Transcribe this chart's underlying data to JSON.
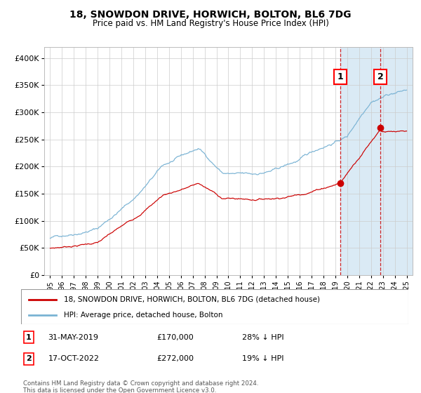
{
  "title": "18, SNOWDON DRIVE, HORWICH, BOLTON, BL6 7DG",
  "subtitle": "Price paid vs. HM Land Registry's House Price Index (HPI)",
  "legend_line1": "18, SNOWDON DRIVE, HORWICH, BOLTON, BL6 7DG (detached house)",
  "legend_line2": "HPI: Average price, detached house, Bolton",
  "annotation_note": "Contains HM Land Registry data © Crown copyright and database right 2024.\nThis data is licensed under the Open Government Licence v3.0.",
  "sale1_date": "31-MAY-2019",
  "sale1_price": "£170,000",
  "sale1_hpi": "28% ↓ HPI",
  "sale2_date": "17-OCT-2022",
  "sale2_price": "£272,000",
  "sale2_hpi": "19% ↓ HPI",
  "sale1_x": 2019.42,
  "sale1_y": 170000,
  "sale2_x": 2022.79,
  "sale2_y": 272000,
  "hpi_color": "#7ab3d4",
  "price_color": "#cc0000",
  "dashed_line_color": "#cc0000",
  "shaded_region_color": "#daeaf5",
  "grid_color": "#cccccc",
  "background_color": "#ffffff",
  "ylim": [
    0,
    420000
  ],
  "xlim": [
    1994.5,
    2025.5
  ]
}
